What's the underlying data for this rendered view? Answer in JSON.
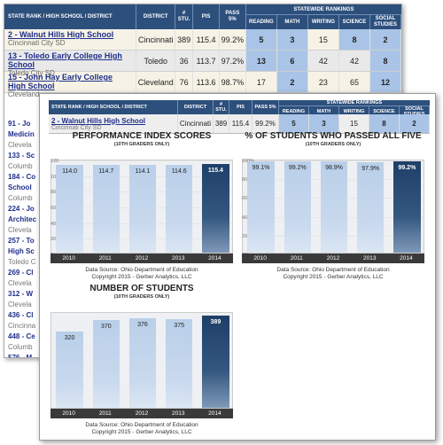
{
  "background_table": {
    "headers": {
      "school": "STATE RANK / HIGH SCHOOL / DISTRICT",
      "district": "DISTRICT",
      "students": "# STU.",
      "pis": "PIS",
      "pass5": "PASS 5%",
      "statewide": "STATEWIDE RANKINGS",
      "reading": "READING",
      "math": "MATH",
      "writing": "WRITING",
      "science": "SCIENCE",
      "social": "SOCIAL STUDIES"
    },
    "rows": [
      {
        "rank_name": "2 - Walnut Hills High School",
        "sd": "Cincinnati City SD",
        "district": "Cincinnati",
        "students": "389",
        "pis": "115.4",
        "pass5": "99.2%",
        "reading": "5",
        "math": "3",
        "writing": "15",
        "science": "8",
        "social": "2"
      },
      {
        "rank_name": "13 - Toledo Early College High School",
        "sd": "Toledo City SD",
        "district": "Toledo",
        "students": "36",
        "pis": "113.7",
        "pass5": "97.2%",
        "reading": "13",
        "math": "6",
        "writing": "42",
        "science": "42",
        "social": "8"
      },
      {
        "rank_name": "15 - John Hay Early College High School",
        "sd": "Cleveland",
        "district": "Cleveland",
        "students": "76",
        "pis": "113.6",
        "pass5": "98.7%",
        "reading": "17",
        "math": "2",
        "writing": "23",
        "science": "65",
        "social": "12"
      }
    ],
    "left_fragments": [
      {
        "text": "91 - Jo",
        "sub": false
      },
      {
        "text": "Medicin",
        "sub": false
      },
      {
        "text": "Clevela",
        "sub": true
      },
      {
        "text": "133 - Sc",
        "sub": false
      },
      {
        "text": "Columb",
        "sub": true
      },
      {
        "text": "184 - Co",
        "sub": false
      },
      {
        "text": "School",
        "sub": false
      },
      {
        "text": "Columb",
        "sub": true
      },
      {
        "text": "224 - Jo",
        "sub": false
      },
      {
        "text": "Architec",
        "sub": false
      },
      {
        "text": "Clevela",
        "sub": true
      },
      {
        "text": "257 - To",
        "sub": false
      },
      {
        "text": "High Sc",
        "sub": false
      },
      {
        "text": "Toledo C",
        "sub": true
      },
      {
        "text": "269 - Cl",
        "sub": false
      },
      {
        "text": "Clevela",
        "sub": true
      },
      {
        "text": "312 - W",
        "sub": false
      },
      {
        "text": "Clevela",
        "sub": true
      },
      {
        "text": "436 - Cl",
        "sub": false
      },
      {
        "text": "Cincinna",
        "sub": true
      },
      {
        "text": "448 - Ce",
        "sub": false
      },
      {
        "text": "Columb",
        "sub": true
      },
      {
        "text": "576 - M",
        "sub": false
      }
    ]
  },
  "front_panel": {
    "header": {
      "school": "STATE RANK / HIGH SCHOOL / DISTRICT",
      "district": "DISTRICT",
      "students": "# STU.",
      "pis": "PIS",
      "pass5": "PASS 5%",
      "statewide": "STATEWIDE RANKINGS",
      "reading": "READING",
      "math": "MATH",
      "writing": "WRITING",
      "science": "SCIENCE",
      "social": "SOCIAL STUDIES"
    },
    "row": {
      "rank_name": "2 - Walnut Hills High School",
      "sd": "Cincinnati City SD",
      "district": "Cincinnati",
      "students": "389",
      "pis": "115.4",
      "pass5": "99.2%",
      "reading": "5",
      "math": "3",
      "writing": "15",
      "science": "8",
      "social": "2"
    }
  },
  "source": {
    "line1": "Data Source: Ohio Department of Education",
    "line2": "Copyright 2015 - Gerber Analytics, LLC"
  },
  "colors": {
    "header_blue": "#2d4f7c",
    "bar_light": "#b9cfe9",
    "bar_dark": "#1e3f68",
    "axis_dark": "#3a3a3a"
  },
  "chart_data": [
    {
      "type": "bar",
      "title": "PERFORMANCE INDEX SCORES",
      "subtitle": "(10TH GRADERS ONLY)",
      "categories": [
        "2010",
        "2011",
        "2012",
        "2013",
        "2014"
      ],
      "values": [
        114.0,
        114.7,
        114.1,
        114.6,
        115.4
      ],
      "labels": [
        "114.0",
        "114.7",
        "114.1",
        "114.6",
        "115.4"
      ],
      "ylim": [
        0,
        120
      ],
      "yticks": [
        "120",
        "100",
        "80",
        "60",
        "40",
        "20",
        "0"
      ],
      "highlight_last": true
    },
    {
      "type": "bar",
      "title": "% OF STUDENTS WHO PASSED ALL FIVE",
      "subtitle": "(10TH GRADERS ONLY)",
      "categories": [
        "2010",
        "2011",
        "2012",
        "2013",
        "2014"
      ],
      "values": [
        99.1,
        99.2,
        98.9,
        97.9,
        99.2
      ],
      "labels": [
        "99.1%",
        "99.2%",
        "98.9%",
        "97.9%",
        "99.2%"
      ],
      "ylim": [
        0,
        100
      ],
      "yticks": [
        "100%",
        "80%",
        "60%",
        "40%",
        "20%",
        "0%"
      ],
      "highlight_last": true
    },
    {
      "type": "bar",
      "title": "NUMBER OF STUDENTS",
      "subtitle": "(10TH GRADERS ONLY)",
      "categories": [
        "2010",
        "2011",
        "2012",
        "2013",
        "2014"
      ],
      "values": [
        320,
        370,
        376,
        375,
        389
      ],
      "labels": [
        "320",
        "370",
        "376",
        "375",
        "389"
      ],
      "ylim": [
        0,
        400
      ],
      "yticks": [],
      "highlight_last": true
    }
  ]
}
